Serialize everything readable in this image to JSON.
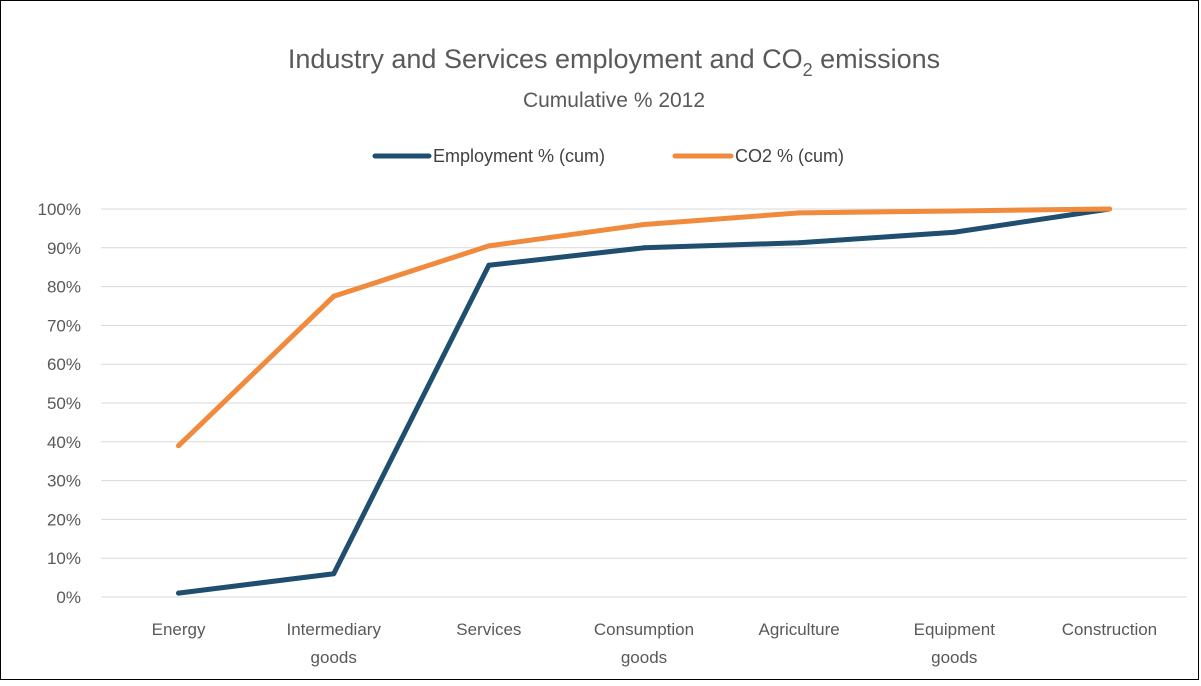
{
  "chart_data": {
    "type": "line",
    "title_main": "Industry and Services employment and CO",
    "title_subscript": "2",
    "title_end": " emissions",
    "subtitle": "Cumulative % 2012",
    "categories": [
      [
        "Energy"
      ],
      [
        "Intermediary",
        "goods"
      ],
      [
        "Services"
      ],
      [
        "Consumption",
        "goods"
      ],
      [
        "Agriculture"
      ],
      [
        "Equipment",
        "goods"
      ],
      [
        "Construction"
      ]
    ],
    "yticks": [
      "0%",
      "10%",
      "20%",
      "30%",
      "40%",
      "50%",
      "60%",
      "70%",
      "80%",
      "90%",
      "100%"
    ],
    "ylim": [
      0,
      100
    ],
    "grid": true,
    "legend_position": "top",
    "series": [
      {
        "name": "Employment % (cum)",
        "color": "#1f4e6e",
        "values": [
          1,
          6,
          85.5,
          90,
          91.3,
          94,
          100
        ]
      },
      {
        "name": "CO2 % (cum)",
        "color": "#f08a3c",
        "values": [
          39,
          77.5,
          90.5,
          96,
          99,
          99.5,
          100
        ]
      }
    ]
  }
}
